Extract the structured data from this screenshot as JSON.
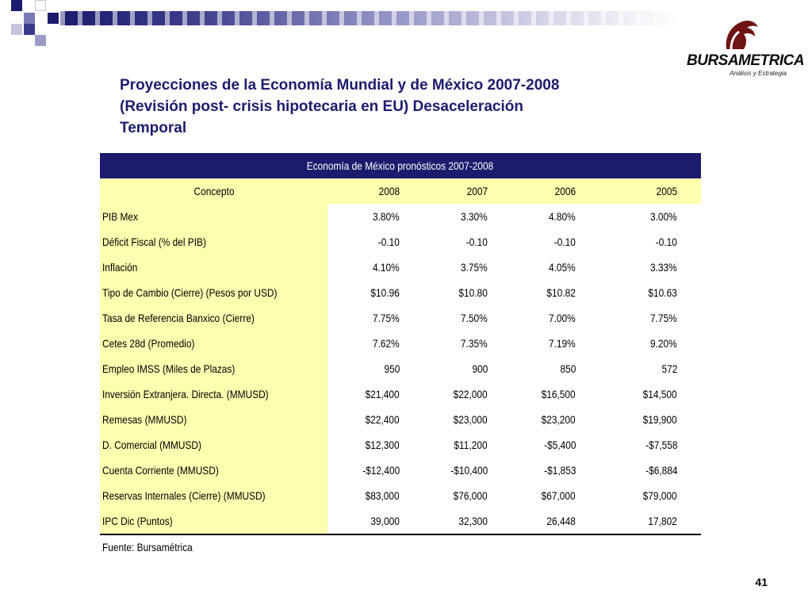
{
  "slide": {
    "title_lines": [
      "Proyecciones de la Economía Mundial y de México 2007-2008",
      "(Revisión post- crisis hipotecaria en EU) Desaceleración",
      "Temporal"
    ],
    "page_number": "41",
    "source": "Fuente: Bursamétrica"
  },
  "logo": {
    "wordmark": "BURSAMETRICA",
    "tagline": "Análisis y Estrategia"
  },
  "colors": {
    "navy": "#1c1c6e",
    "label_yellow": "#ffffb0",
    "white": "#ffffff"
  },
  "table": {
    "caption": "Economía de México pronósticos 2007-2008",
    "columns": [
      "Concepto",
      "2008",
      "2007",
      "2006",
      "2005"
    ],
    "rows": [
      {
        "label": "PIB Mex",
        "values": [
          "3.80%",
          "3.30%",
          "4.80%",
          "3.00%"
        ]
      },
      {
        "label": "Déficit Fiscal  (% del PIB)",
        "values": [
          "-0.10",
          "-0.10",
          "-0.10",
          "-0.10"
        ]
      },
      {
        "label": "Inflación",
        "values": [
          "4.10%",
          "3.75%",
          "4.05%",
          "3.33%"
        ]
      },
      {
        "label": "Tipo de Cambio  (Cierre) (Pesos por USD)",
        "values": [
          "$10.96",
          "$10.80",
          "$10.82",
          "$10.63"
        ]
      },
      {
        "label": "Tasa de Referencia Banxico (Cierre)",
        "values": [
          "7.75%",
          "7.50%",
          "7.00%",
          "7.75%"
        ]
      },
      {
        "label": "Cetes 28d (Promedio)",
        "values": [
          "7.62%",
          "7.35%",
          "7.19%",
          "9.20%"
        ]
      },
      {
        "label": "Empleo IMSS (Miles de Plazas)",
        "values": [
          "950",
          "900",
          "850",
          "572"
        ]
      },
      {
        "label": "Inversión Extranjera. Directa. (MMUSD)",
        "values": [
          "$21,400",
          "$22,000",
          "$16,500",
          "$14,500"
        ]
      },
      {
        "label": "Remesas (MMUSD)",
        "values": [
          "$22,400",
          "$23,000",
          "$23,200",
          "$19,900"
        ]
      },
      {
        "label": "D. Comercial (MMUSD)",
        "values": [
          "$12,300",
          "$11,200",
          "-$5,400",
          "-$7,558"
        ]
      },
      {
        "label": "Cuenta Corriente (MMUSD)",
        "values": [
          "-$12,400",
          "-$10,400",
          "-$1,853",
          "-$6,884"
        ]
      },
      {
        "label": "Reservas Internales (Cierre)  (MMUSD)",
        "values": [
          "$83,000",
          "$76,000",
          "$67,000",
          "$79,000"
        ]
      },
      {
        "label": "IPC Dic  (Puntos)",
        "values": [
          "39,000",
          "32,300",
          "26,448",
          "17,802"
        ]
      }
    ]
  }
}
